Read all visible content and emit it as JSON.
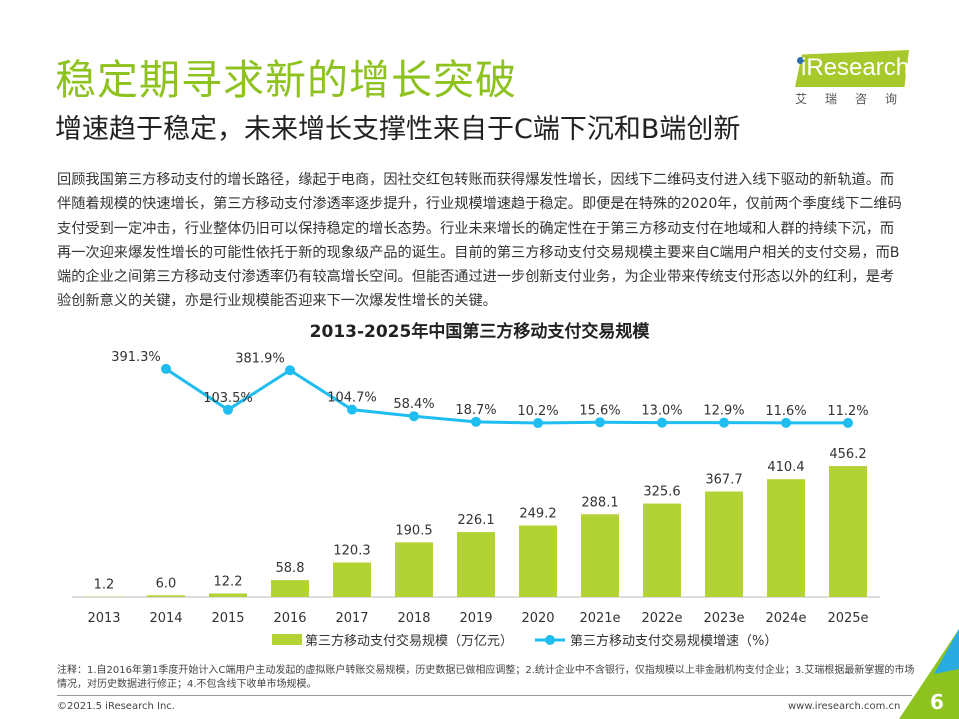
{
  "header": {
    "title": "稳定期寻求新的增长突破",
    "subtitle": "增速趋于稳定，未来增长支撑性来自于C端下沉和B端创新"
  },
  "logo": {
    "brand": "iResearch",
    "brand_cn": "艾瑞咨询"
  },
  "body": "回顾我国第三方移动支付的增长路径，缘起于电商，因社交红包转账而获得爆发性增长，因线下二维码支付进入线下驱动的新轨道。而伴随着规模的快速增长，第三方移动支付渗透率逐步提升，行业规模增速趋于稳定。即便是在特殊的2020年，仅前两个季度线下二维码支付受到一定冲击，行业整体仍旧可以保持稳定的增长态势。行业未来增长的确定性在于第三方移动支付在地域和人群的持续下沉，而再一次迎来爆发性增长的可能性依托于新的现象级产品的诞生。目前的第三方移动支付交易规模主要来自C端用户相关的支付交易，而B端的企业之间第三方移动支付渗透率仍有较高增长空间。但能否通过进一步创新支付业务，为企业带来传统支付形态以外的红利，是考验创新意义的关键，亦是行业规模能否迎来下一次爆发性增长的关键。",
  "chart_data": {
    "type": "bar+line",
    "title": "2013-2025年中国第三方移动支付交易规模",
    "categories": [
      "2013",
      "2014",
      "2015",
      "2016",
      "2017",
      "2018",
      "2019",
      "2020",
      "2021e",
      "2022e",
      "2023e",
      "2024e",
      "2025e"
    ],
    "series": [
      {
        "name": "第三方移动支付交易规模（万亿元）",
        "type": "bar",
        "color": "#b3d233",
        "values": [
          1.2,
          6.0,
          12.2,
          58.8,
          120.3,
          190.5,
          226.1,
          249.2,
          288.1,
          325.6,
          367.7,
          410.4,
          456.2
        ],
        "labels": [
          "1.2",
          "6.0",
          "12.2",
          "58.8",
          "120.3",
          "190.5",
          "226.1",
          "249.2",
          "288.1",
          "325.6",
          "367.7",
          "410.4",
          "456.2"
        ]
      },
      {
        "name": "第三方移动支付交易规模增速（%）",
        "type": "line",
        "color": "#1fbdf0",
        "values": [
          null,
          391.3,
          103.5,
          381.9,
          104.7,
          58.4,
          18.7,
          10.2,
          15.6,
          13.0,
          12.9,
          11.6,
          11.2
        ],
        "labels": [
          "",
          "391.3%",
          "103.5%",
          "381.9%",
          "104.7%",
          "58.4%",
          "18.7%",
          "10.2%",
          "15.6%",
          "13.0%",
          "12.9%",
          "11.6%",
          "11.2%"
        ]
      }
    ],
    "legend_position": "bottom",
    "grid": false
  },
  "footer": {
    "note": "注释：1.自2016年第1季度开始计入C端用户主动发起的虚拟账户转账交易规模，历史数据已做相应调整；2.统计企业中不含银行，仅指规模以上非金融机构支付企业；3.艾瑞根据最新掌握的市场情况，对历史数据进行修正；4.不包含线下收单市场规模。",
    "copyright": "©2021.5 iResearch Inc.",
    "site": "www.iresearch.com.cn",
    "page": "6"
  }
}
